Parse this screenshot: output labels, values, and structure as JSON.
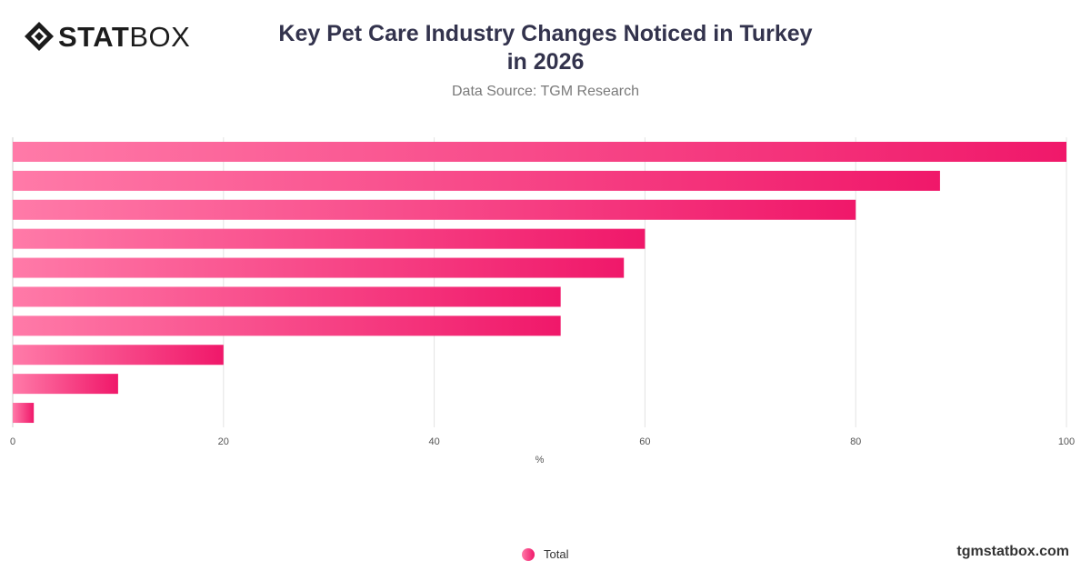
{
  "brand": {
    "logo_bold": "STAT",
    "logo_light": "BOX",
    "footer": "tgmstatbox.com"
  },
  "header": {
    "title": "Key Pet Care Industry Changes Noticed in Turkey in 2026",
    "subtitle": "Data Source: TGM Research"
  },
  "legend": {
    "label": "Total"
  },
  "colors": {
    "bar_start": "#ff7aa8",
    "bar_end": "#f0186a",
    "grid": "#e3e3e3",
    "title": "#33334d"
  },
  "chart_data": {
    "type": "bar",
    "orientation": "horizontal",
    "categories": [
      "",
      "",
      "",
      "",
      "",
      "",
      "",
      "",
      "",
      ""
    ],
    "series": [
      {
        "name": "Total",
        "values": [
          100,
          88,
          80,
          60,
          58,
          52,
          52,
          20,
          10,
          2
        ]
      }
    ],
    "xlabel": "%",
    "xlim": [
      0,
      100
    ],
    "xticks": [
      0,
      20,
      40,
      60,
      80,
      100
    ],
    "grid": true,
    "legend_position": "bottom-center"
  }
}
